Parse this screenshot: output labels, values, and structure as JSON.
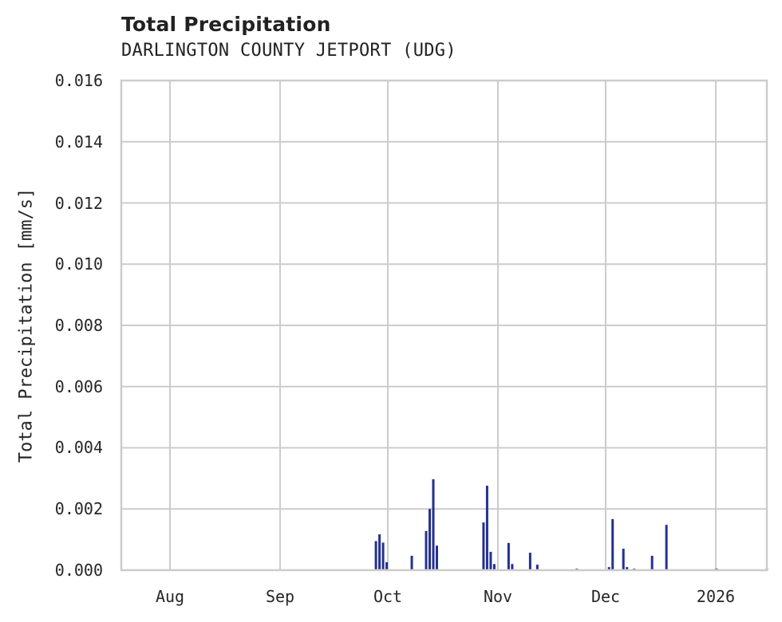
{
  "chart": {
    "title": "Total Precipitation",
    "subtitle": "DARLINGTON COUNTY JETPORT (UDG)",
    "ylabel": "Total Precipitation [mm/s]",
    "yticks": [
      "0.000",
      "0.002",
      "0.004",
      "0.006",
      "0.008",
      "0.010",
      "0.012",
      "0.014",
      "0.016"
    ],
    "xticks": [
      "Aug",
      "Sep",
      "Oct",
      "Nov",
      "Dec",
      "2026"
    ],
    "bar_color": "#24318f",
    "grid_color": "#cccccc"
  },
  "chart_data": {
    "type": "bar",
    "title": "Total Precipitation",
    "subtitle": "DARLINGTON COUNTY JETPORT (UDG)",
    "xlabel": "",
    "ylabel": "Total Precipitation [mm/s]",
    "ylim": [
      0,
      0.016
    ],
    "xlim": [
      "2025-07-18",
      "2026-01-14"
    ],
    "x_tick_labels": [
      "Aug",
      "Sep",
      "Oct",
      "Nov",
      "Dec",
      "2026"
    ],
    "y_tick_labels": [
      "0.000",
      "0.002",
      "0.004",
      "0.006",
      "0.008",
      "0.010",
      "0.012",
      "0.014",
      "0.016"
    ],
    "grid": true,
    "legend": null,
    "series": [
      {
        "name": "Total Precipitation",
        "points": [
          {
            "date": "2025-09-27",
            "value": 0.00095
          },
          {
            "date": "2025-09-28",
            "value": 0.00117
          },
          {
            "date": "2025-09-29",
            "value": 0.0009
          },
          {
            "date": "2025-09-30",
            "value": 0.00026
          },
          {
            "date": "2025-10-07",
            "value": 0.00047
          },
          {
            "date": "2025-10-11",
            "value": 0.00128
          },
          {
            "date": "2025-10-12",
            "value": 0.002
          },
          {
            "date": "2025-10-13",
            "value": 0.00297
          },
          {
            "date": "2025-10-14",
            "value": 0.0008
          },
          {
            "date": "2025-10-27",
            "value": 0.00156
          },
          {
            "date": "2025-10-28",
            "value": 0.00276
          },
          {
            "date": "2025-10-29",
            "value": 0.0006
          },
          {
            "date": "2025-10-30",
            "value": 0.0002
          },
          {
            "date": "2025-11-03",
            "value": 0.00089
          },
          {
            "date": "2025-11-04",
            "value": 0.0002
          },
          {
            "date": "2025-11-09",
            "value": 0.00057
          },
          {
            "date": "2025-11-11",
            "value": 0.00018
          },
          {
            "date": "2025-11-22",
            "value": 5e-05
          },
          {
            "date": "2025-12-01",
            "value": 0.0001
          },
          {
            "date": "2025-12-02",
            "value": 0.00167
          },
          {
            "date": "2025-12-05",
            "value": 0.0007
          },
          {
            "date": "2025-12-06",
            "value": 0.0001
          },
          {
            "date": "2025-12-08",
            "value": 5e-05
          },
          {
            "date": "2025-12-13",
            "value": 0.00047
          },
          {
            "date": "2025-12-17",
            "value": 0.00148
          },
          {
            "date": "2025-12-31",
            "value": 5e-05
          },
          {
            "date": "2026-01-14",
            "value": 5e-05
          }
        ]
      }
    ]
  }
}
